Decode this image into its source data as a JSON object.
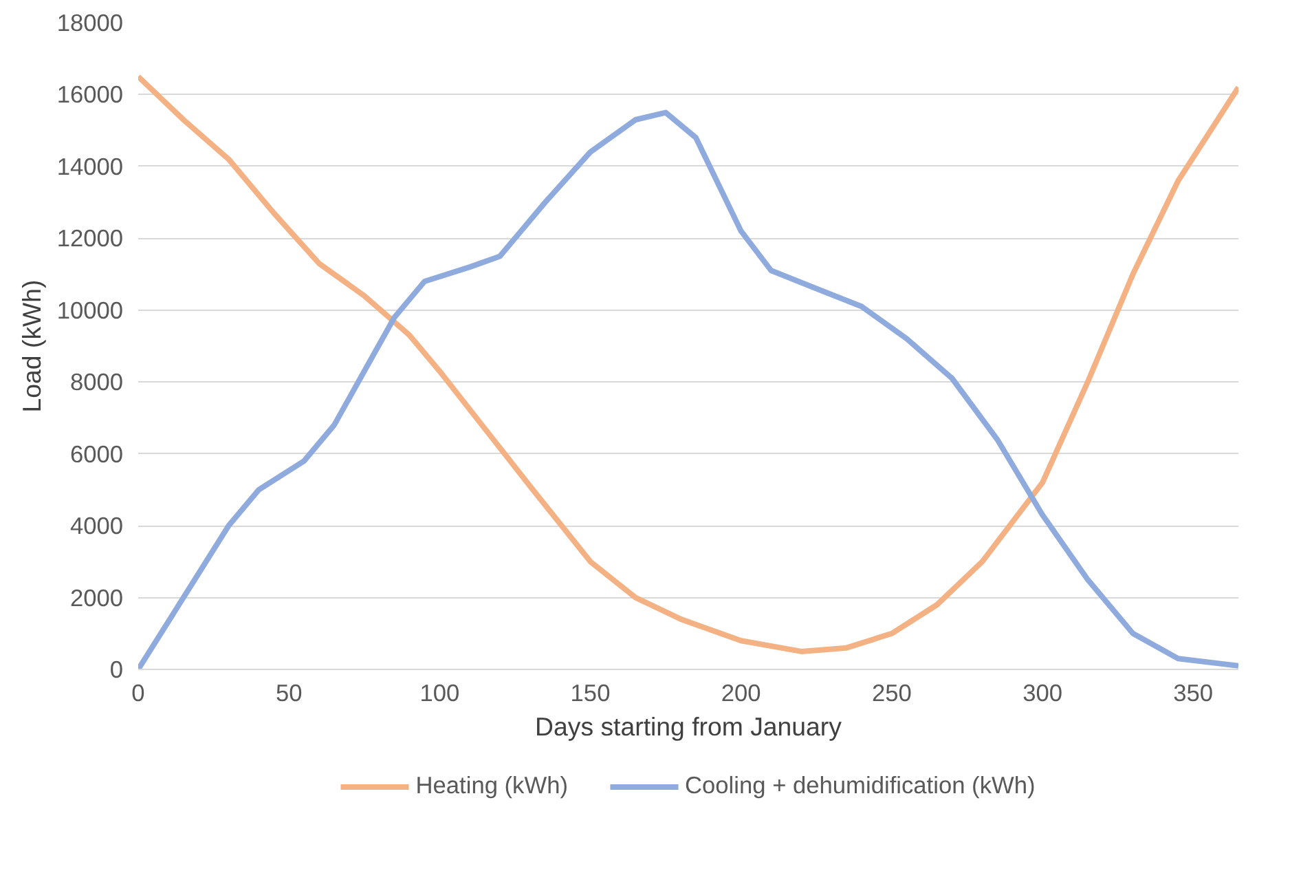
{
  "chart_data": {
    "type": "line",
    "xlabel": "Days starting from January",
    "ylabel": "Load (kWh)",
    "xlim": [
      0,
      365
    ],
    "xticks": [
      0,
      50,
      100,
      150,
      200,
      250,
      300,
      350
    ],
    "ylim": [
      0,
      18000
    ],
    "yticks": [
      0,
      2000,
      4000,
      6000,
      8000,
      10000,
      12000,
      14000,
      16000,
      18000
    ],
    "grid": "y",
    "legend": "bottom",
    "marker": "none",
    "line_style": "solid",
    "series": [
      {
        "name": "Heating (kWh)",
        "color": "#f4b183",
        "x": [
          0,
          15,
          30,
          45,
          60,
          75,
          90,
          100,
          115,
          130,
          150,
          165,
          180,
          200,
          220,
          235,
          250,
          265,
          280,
          300,
          315,
          330,
          345,
          365
        ],
        "values": [
          16500,
          15300,
          14200,
          12700,
          11300,
          10400,
          9300,
          8300,
          6700,
          5100,
          3000,
          2000,
          1400,
          800,
          500,
          600,
          1000,
          1800,
          3000,
          5200,
          8000,
          11000,
          13600,
          16200
        ]
      },
      {
        "name": "Cooling + dehumidification (kWh)",
        "color": "#8faadc",
        "x": [
          0,
          15,
          30,
          40,
          55,
          65,
          75,
          85,
          95,
          110,
          120,
          135,
          150,
          165,
          175,
          185,
          200,
          210,
          225,
          240,
          255,
          270,
          285,
          300,
          315,
          330,
          345,
          365
        ],
        "values": [
          0,
          2000,
          4000,
          5000,
          5800,
          6800,
          8300,
          9800,
          10800,
          11200,
          11500,
          13000,
          14400,
          15300,
          15500,
          14800,
          12200,
          11100,
          10600,
          10100,
          9200,
          8100,
          6400,
          4300,
          2500,
          1000,
          300,
          100
        ]
      }
    ]
  }
}
